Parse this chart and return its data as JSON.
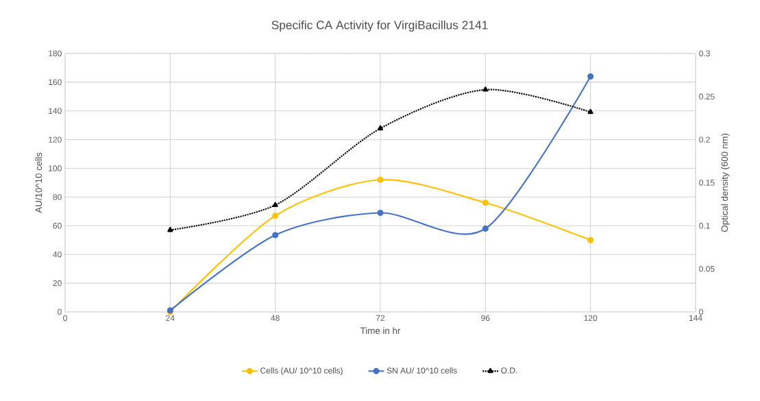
{
  "chart_data": {
    "type": "line",
    "title": "Specific CA Activity for VirgiBacillus 2141",
    "xlabel": "Time in hr",
    "ylabel": "AU/10^10 cells",
    "y2label": "Optical density (600 nm)",
    "x": [
      24,
      48,
      72,
      96,
      120
    ],
    "series": [
      {
        "name": "Cells (AU/ 10^10 cells)",
        "color": "#ffc000",
        "values": [
          0,
          67,
          92,
          76,
          50
        ],
        "marker": "circle",
        "line_style": "solid"
      },
      {
        "name": "SN AU/ 10^10 cells",
        "color": "#4472c4",
        "values": [
          1,
          53.5,
          69,
          58,
          164
        ],
        "marker": "circle",
        "line_style": "solid"
      },
      {
        "name": "O.D.",
        "color": "#000000",
        "values": [
          0.095,
          0.124,
          0.213,
          0.258,
          0.232
        ],
        "marker": "triangle",
        "line_style": "dotted",
        "axis": "y2"
      }
    ],
    "xlim": [
      0,
      144
    ],
    "xticks": [
      0,
      24,
      48,
      72,
      96,
      120,
      144
    ],
    "ylim": [
      0,
      180
    ],
    "yticks": [
      0,
      20,
      40,
      60,
      80,
      100,
      120,
      140,
      160,
      180
    ],
    "y2lim": [
      0,
      0.3
    ],
    "y2ticks": [
      0,
      0.05,
      0.1,
      0.15,
      0.2,
      0.25,
      0.3
    ],
    "grid": true,
    "legend": "bottom"
  }
}
